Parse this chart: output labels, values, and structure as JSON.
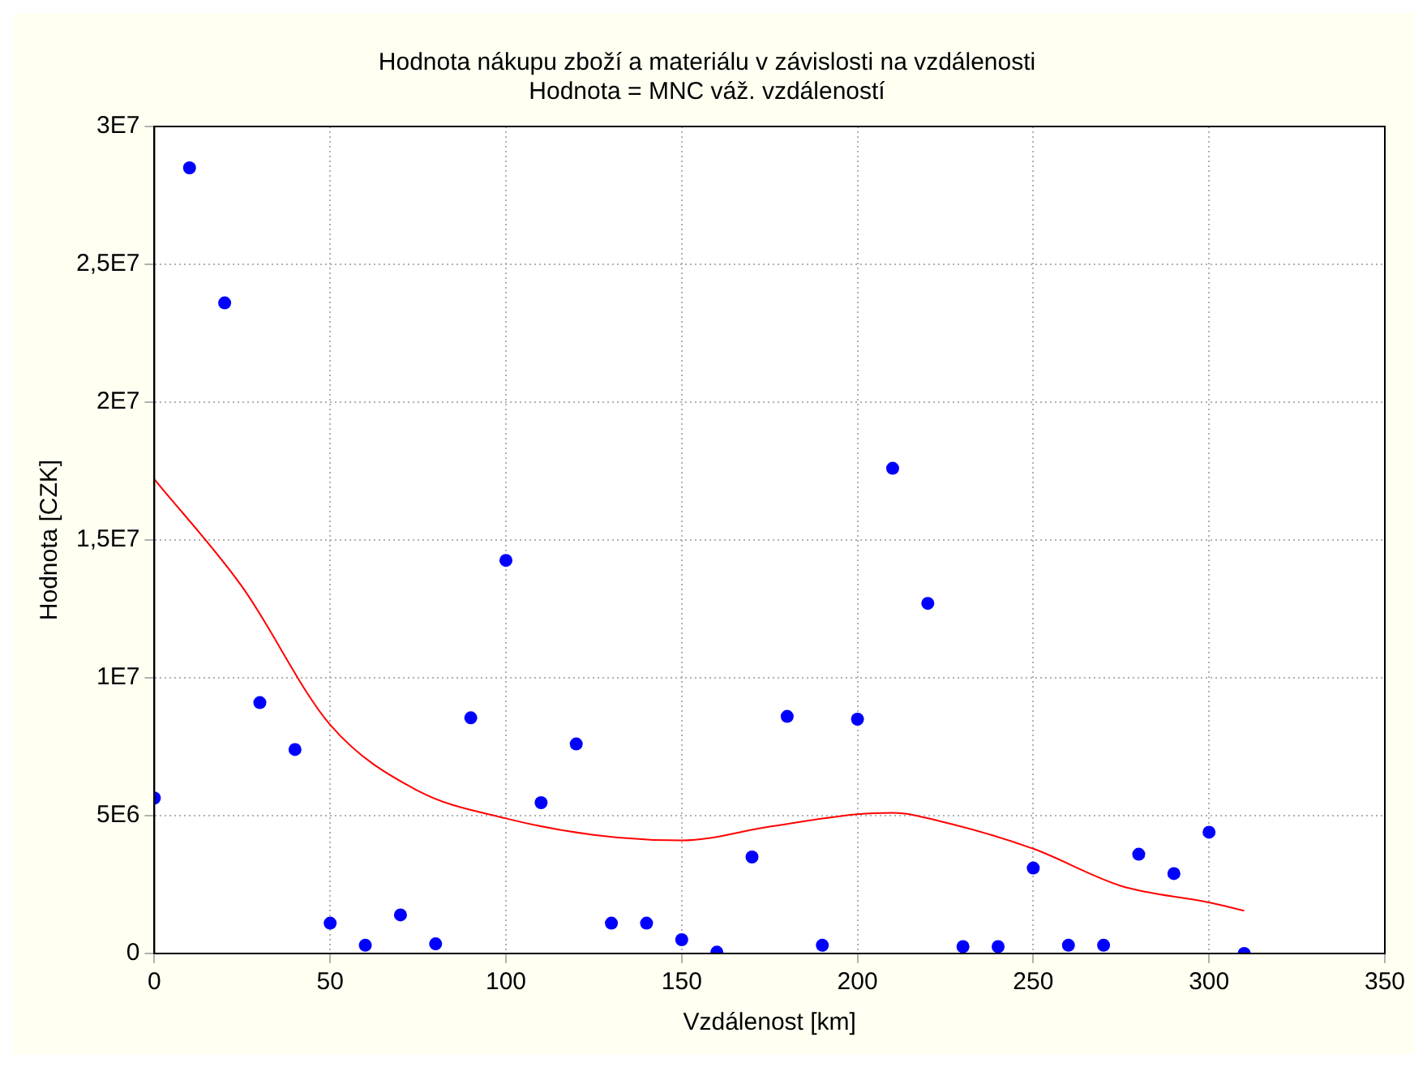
{
  "chart_data": {
    "type": "scatter",
    "title": "Hodnota nákupu zboží a materiálu v závislosti na vzdálenosti",
    "subtitle": "Hodnota = MNC váž. vzdáleností",
    "xlabel": "Vzdálenost [km]",
    "ylabel": "Hodnota [CZK]",
    "x": [
      0,
      10,
      20,
      30,
      40,
      50,
      60,
      70,
      80,
      90,
      100,
      110,
      120,
      130,
      140,
      150,
      160,
      170,
      180,
      190,
      200,
      210,
      220,
      230,
      240,
      250,
      260,
      270,
      280,
      290,
      300,
      310
    ],
    "series": [
      {
        "color": "#0000ff",
        "marker": "circle",
        "values": [
          5640000,
          28500000,
          23600000,
          9100000,
          7400000,
          1100000,
          300000,
          1400000,
          350000,
          8550000,
          14260000,
          5470000,
          7600000,
          1100000,
          1100000,
          500000,
          50000,
          3500000,
          8600000,
          300000,
          8500000,
          17600000,
          12700000,
          250000,
          250000,
          3100000,
          300000,
          300000,
          3600000,
          2900000,
          4400000,
          0
        ]
      },
      {
        "type": "line",
        "color": "#ff0000",
        "marker": "none",
        "line_style": "solid",
        "x": [
          0,
          25,
          50,
          75,
          100,
          125,
          150,
          175,
          200,
          210,
          225,
          250,
          275,
          300,
          310
        ],
        "values": [
          17200000,
          13300000,
          8300000,
          5900000,
          4900000,
          4300000,
          4100000,
          4600000,
          5050000,
          5100000,
          4750000,
          3800000,
          2450000,
          1850000,
          1550000
        ]
      }
    ],
    "xlim": [
      0,
      350
    ],
    "xticks": [
      0,
      50,
      100,
      150,
      200,
      250,
      300,
      350
    ],
    "ylim": [
      0,
      30000000
    ],
    "yticks": [
      0,
      {
        "value": 5000000,
        "label": "5E6"
      },
      {
        "value": 10000000,
        "label": "1E7"
      },
      {
        "value": 15000000,
        "label": "1,5E7"
      },
      {
        "value": 20000000,
        "label": "2E7"
      },
      {
        "value": 25000000,
        "label": "2,5E7"
      },
      {
        "value": 30000000,
        "label": "3E7"
      }
    ],
    "grid": true,
    "legend": false
  }
}
